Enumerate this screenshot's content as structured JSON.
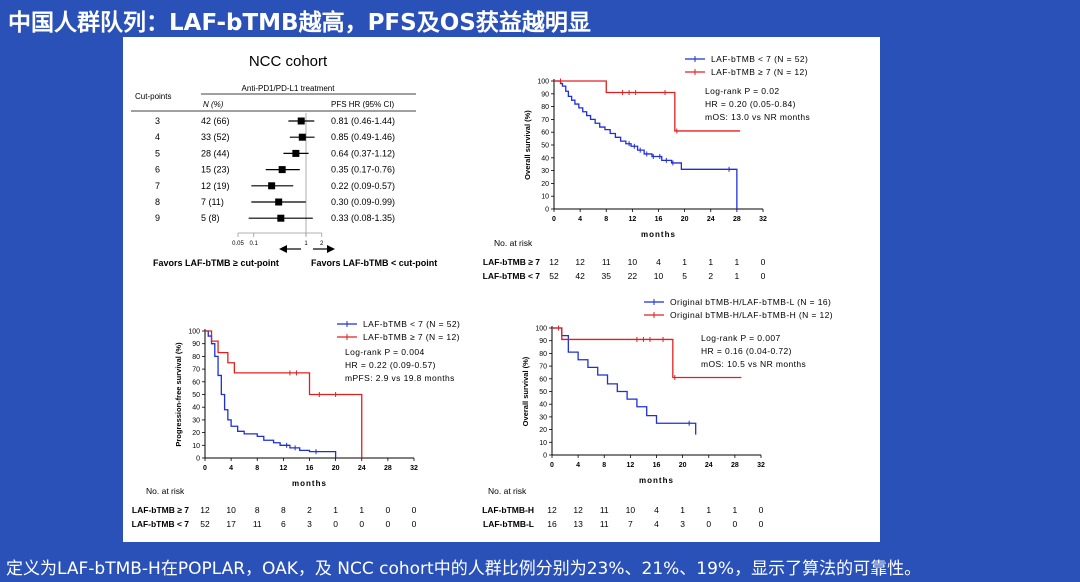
{
  "slide": {
    "title": "中国人群队列：LAF-bTMB越高，PFS及OS获益越明显",
    "footer": "定义为LAF-bTMB-H在POPLAR，OAK，及 NCC cohort中的人群比例分别为23%、21%、19%，显示了算法的可靠性。"
  },
  "chart_data": [
    {
      "id": "forest",
      "type": "forest",
      "title": "NCC cohort",
      "header_group": "Anti-PD1/PD-L1 treatment",
      "col_cut": "Cut-points",
      "col_n": "N (%)",
      "col_hr": "PFS HR (95% CI)",
      "rows": [
        {
          "cut": "3",
          "n": "42 (66)",
          "hr_text": "0.81 (0.46-1.44)",
          "hr": 0.81,
          "lo": 0.46,
          "hi": 1.44
        },
        {
          "cut": "4",
          "n": "33 (52)",
          "hr_text": "0.85 (0.49-1.46)",
          "hr": 0.85,
          "lo": 0.49,
          "hi": 1.46
        },
        {
          "cut": "5",
          "n": "28 (44)",
          "hr_text": "0.64 (0.37-1.12)",
          "hr": 0.64,
          "lo": 0.37,
          "hi": 1.12
        },
        {
          "cut": "6",
          "n": "15 (23)",
          "hr_text": "0.35 (0.17-0.76)",
          "hr": 0.35,
          "lo": 0.17,
          "hi": 0.76
        },
        {
          "cut": "7",
          "n": "12 (19)",
          "hr_text": "0.22 (0.09-0.57)",
          "hr": 0.22,
          "lo": 0.09,
          "hi": 0.57
        },
        {
          "cut": "8",
          "n": "7 (11)",
          "hr_text": "0.30 (0.09-0.99)",
          "hr": 0.3,
          "lo": 0.09,
          "hi": 0.99
        },
        {
          "cut": "9",
          "n": "5 (8)",
          "hr_text": "0.33 (0.08-1.35)",
          "hr": 0.33,
          "lo": 0.08,
          "hi": 1.35
        }
      ],
      "axis_ticks": [
        {
          "v": 0.05,
          "label": "0.05"
        },
        {
          "v": 0.1,
          "label": "0.1"
        },
        {
          "v": 1,
          "label": "1"
        },
        {
          "v": 2,
          "label": "2"
        }
      ],
      "xlim": [
        0.05,
        2
      ],
      "favors_left": "Favors LAF-bTMB ≥ cut-point",
      "favors_right": "Favors LAF-bTMB < cut-point"
    },
    {
      "id": "km_os",
      "type": "line",
      "ylabel": "Overall survival (%)",
      "xlabel": "months",
      "xlim": [
        0,
        32
      ],
      "ylim": [
        0,
        100
      ],
      "xticks": [
        0,
        4,
        8,
        12,
        16,
        20,
        24,
        28,
        32
      ],
      "yticks": [
        0,
        10,
        20,
        30,
        40,
        50,
        60,
        70,
        80,
        90,
        100
      ],
      "series": [
        {
          "name": "LAF-bTMB < 7 (N = 52)",
          "color": "#1f2fd6",
          "x": [
            0,
            1,
            1.3,
            1.8,
            2.2,
            2.7,
            3.2,
            3.8,
            4.4,
            5,
            5.6,
            6.3,
            7,
            7.8,
            8.6,
            9.4,
            10.2,
            11,
            11.8,
            12.8,
            13.8,
            15,
            16.5,
            18,
            19.5,
            28,
            28
          ],
          "y": [
            100,
            98,
            96,
            92,
            88,
            85,
            82,
            79,
            76,
            73,
            70,
            67,
            64,
            62,
            59,
            56,
            53,
            51,
            49,
            46,
            43,
            41,
            38,
            36,
            31,
            31,
            0
          ],
          "censor_x": [
            11.5,
            12.3,
            13.2,
            14.2,
            15.2,
            16.2,
            17.2,
            18.2,
            26.8
          ]
        },
        {
          "name": "LAF-bTMB ≥ 7 (N = 12)",
          "color": "#e02020",
          "x": [
            0,
            1.5,
            6.5,
            8,
            18,
            18.5,
            28.5
          ],
          "y": [
            100,
            100,
            100,
            91,
            91,
            61,
            61
          ],
          "censor_x": [
            1,
            10.5,
            11.5,
            12.5,
            17,
            18.8
          ]
        }
      ],
      "stats": [
        "Log-rank P = 0.02",
        "HR = 0.20 (0.05-0.84)",
        "mOS: 13.0 vs NR months"
      ],
      "risk_title": "No. at risk",
      "risk_rows": [
        {
          "label": "LAF-bTMB ≥ 7",
          "values": [
            "12",
            "12",
            "11",
            "10",
            "4",
            "1",
            "1",
            "1",
            "0"
          ]
        },
        {
          "label": "LAF-bTMB < 7",
          "values": [
            "52",
            "42",
            "35",
            "22",
            "10",
            "5",
            "2",
            "1",
            "0"
          ]
        }
      ]
    },
    {
      "id": "km_pfs",
      "type": "line",
      "ylabel": "Progression-free survival (%)",
      "xlabel": "months",
      "xlim": [
        0,
        32
      ],
      "ylim": [
        0,
        100
      ],
      "xticks": [
        0,
        4,
        8,
        12,
        16,
        20,
        24,
        28,
        32
      ],
      "yticks": [
        0,
        10,
        20,
        30,
        40,
        50,
        60,
        70,
        80,
        90,
        100
      ],
      "series": [
        {
          "name": "LAF-bTMB < 7 (N = 52)",
          "color": "#1f2fd6",
          "x": [
            0,
            0.5,
            1,
            1.5,
            2,
            2.5,
            3,
            3.5,
            4,
            5,
            6,
            8,
            9,
            10.5,
            11.5,
            13,
            14.5,
            16,
            20,
            20
          ],
          "y": [
            100,
            96,
            90,
            80,
            65,
            50,
            38,
            30,
            25,
            21,
            19,
            17,
            14,
            12,
            10,
            8,
            6,
            5,
            5,
            0
          ],
          "censor_x": [
            12.5,
            13.8,
            17
          ]
        },
        {
          "name": "LAF-bTMB ≥ 7 (N = 12)",
          "color": "#e02020",
          "x": [
            0,
            1,
            2,
            3.5,
            4.5,
            15.5,
            16,
            24,
            24
          ],
          "y": [
            100,
            92,
            83,
            75,
            67,
            67,
            50,
            50,
            0
          ],
          "censor_x": [
            13,
            14,
            17.5,
            20
          ]
        }
      ],
      "stats": [
        "Log-rank P = 0.004",
        "HR = 0.22 (0.09-0.57)",
        "mPFS: 2.9 vs 19.8 months"
      ],
      "risk_title": "No. at risk",
      "risk_rows": [
        {
          "label": "LAF-bTMB ≥ 7",
          "values": [
            "12",
            "10",
            "8",
            "8",
            "2",
            "1",
            "1",
            "0",
            "0"
          ]
        },
        {
          "label": "LAF-bTMB < 7",
          "values": [
            "52",
            "17",
            "11",
            "6",
            "3",
            "0",
            "0",
            "0",
            "0"
          ]
        }
      ]
    },
    {
      "id": "km_os2",
      "type": "line",
      "ylabel": "Overall survival (%)",
      "xlabel": "months",
      "xlim": [
        0,
        32
      ],
      "ylim": [
        0,
        100
      ],
      "xticks": [
        0,
        4,
        8,
        12,
        16,
        20,
        24,
        28,
        32
      ],
      "yticks": [
        0,
        10,
        20,
        30,
        40,
        50,
        60,
        70,
        80,
        90,
        100
      ],
      "series": [
        {
          "name": "Original bTMB-H/LAF-bTMB-L (N = 16)",
          "color": "#1f2fd6",
          "x": [
            0,
            1.5,
            2.5,
            4,
            5.5,
            7,
            8.5,
            10,
            11.5,
            13,
            14.5,
            16,
            22,
            22
          ],
          "y": [
            100,
            94,
            81,
            75,
            69,
            63,
            56,
            50,
            44,
            38,
            31,
            25,
            19,
            16
          ],
          "censor_x": [
            21
          ]
        },
        {
          "name": "Original bTMB-H/LAF-bTMB-H (N = 12)",
          "color": "#e02020",
          "x": [
            0,
            1.5,
            18,
            18.5,
            29
          ],
          "y": [
            100,
            91,
            91,
            61,
            61
          ],
          "censor_x": [
            1,
            13,
            14,
            15,
            17,
            18.8
          ]
        }
      ],
      "stats": [
        "Log-rank P = 0.007",
        "HR = 0.16 (0.04-0.72)",
        "mOS: 10.5 vs NR months"
      ],
      "risk_title": "No. at risk",
      "risk_rows": [
        {
          "label": "LAF-bTMB-H",
          "values": [
            "12",
            "12",
            "11",
            "10",
            "4",
            "1",
            "1",
            "1",
            "0"
          ]
        },
        {
          "label": "LAF-bTMB-L",
          "values": [
            "16",
            "13",
            "11",
            "7",
            "4",
            "3",
            "0",
            "0",
            "0"
          ]
        }
      ]
    }
  ]
}
